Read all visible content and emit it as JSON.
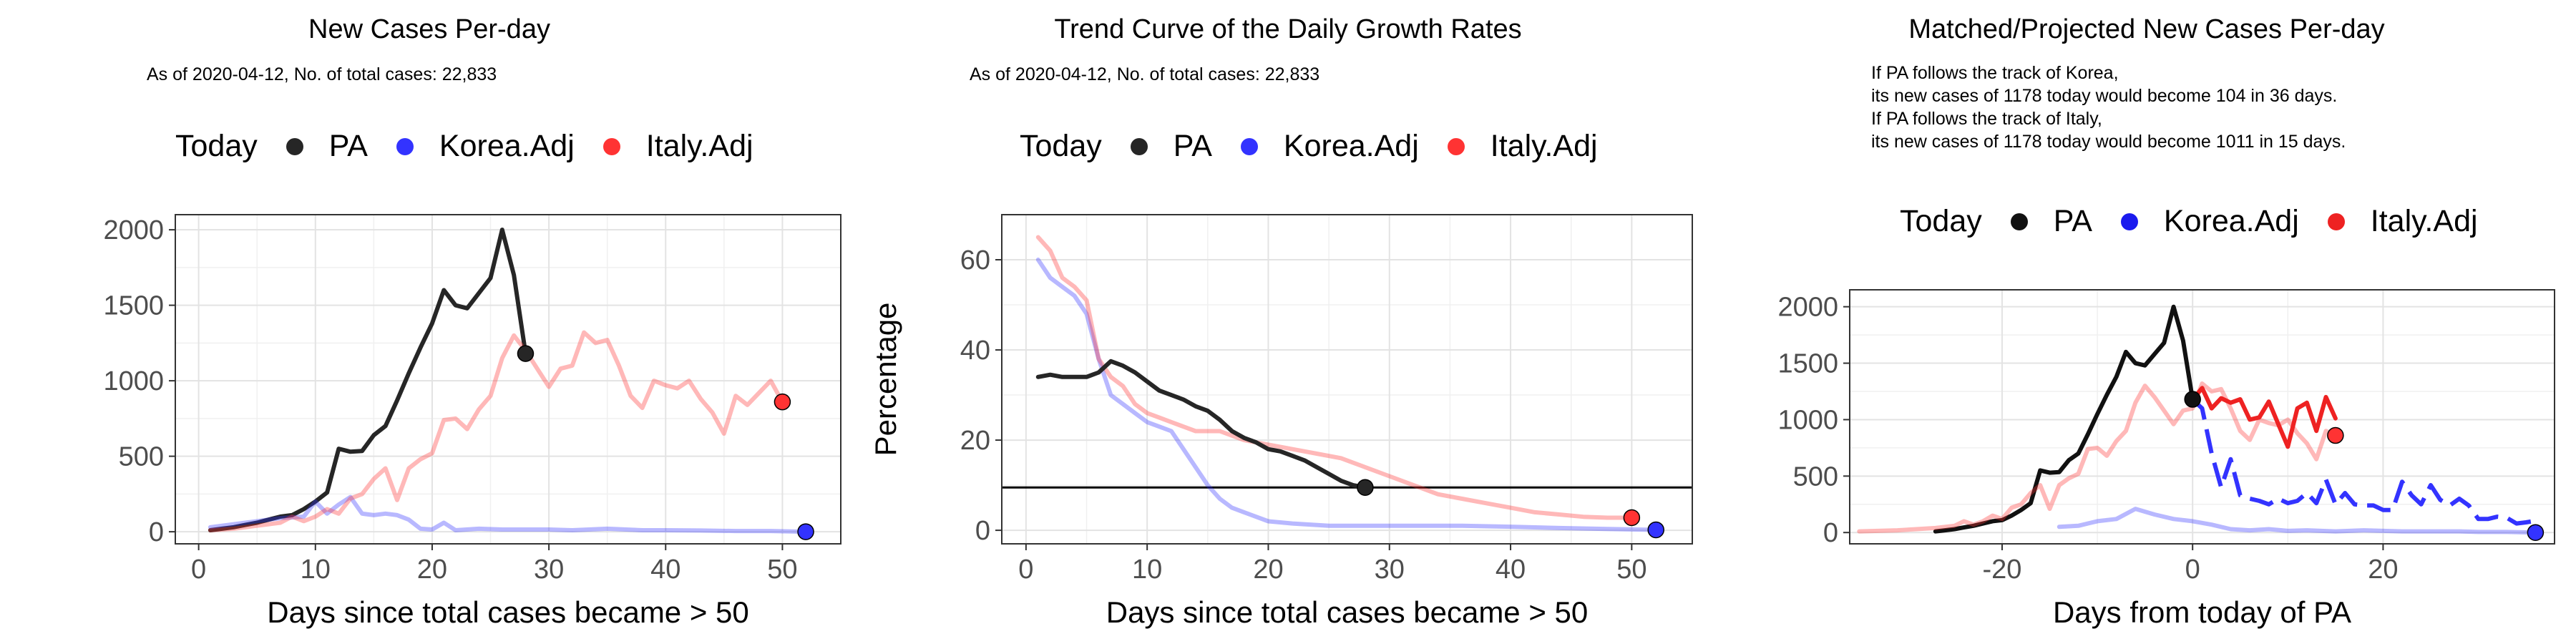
{
  "legend_title": "Today",
  "colors": {
    "PA": "#262626",
    "Korea": "#3333ff",
    "Italy": "#ff3333"
  },
  "chart_data": [
    {
      "type": "line",
      "title": "New Cases Per-day",
      "subtitle": "As of 2020-04-12, No. of total cases: 22,833",
      "xlabel": "Days since total cases became > 50",
      "ylabel": "",
      "xlim": [
        -2,
        55
      ],
      "ylim": [
        -80,
        2100
      ],
      "xticks": [
        0,
        10,
        20,
        30,
        40,
        50
      ],
      "yticks": [
        0,
        500,
        1000,
        1500,
        2000
      ],
      "grid": true,
      "legend_position": "top",
      "legend": [
        "PA",
        "Korea.Adj",
        "Italy.Adj"
      ],
      "series": [
        {
          "name": "PA",
          "color": "#262626",
          "alpha": 1,
          "x": [
            1,
            2,
            3,
            4,
            5,
            6,
            7,
            8,
            9,
            10,
            11,
            12,
            13,
            14,
            15,
            16,
            17,
            18,
            19,
            20,
            21,
            22,
            23,
            24,
            25,
            26,
            27,
            28
          ],
          "y": [
            10,
            20,
            30,
            45,
            60,
            80,
            100,
            110,
            150,
            200,
            260,
            550,
            530,
            535,
            640,
            700,
            870,
            1050,
            1220,
            1380,
            1600,
            1500,
            1480,
            1580,
            1680,
            2000,
            1700,
            1180
          ],
          "end": [
            28,
            1180
          ]
        },
        {
          "name": "Korea.Adj",
          "color": "#3333ff",
          "alpha": 0.35,
          "x": [
            1,
            3,
            5,
            7,
            9,
            10,
            11,
            12,
            13,
            14,
            15,
            16,
            17,
            18,
            19,
            20,
            21,
            22,
            24,
            26,
            28,
            30,
            32,
            35,
            38,
            40,
            43,
            46,
            49,
            52
          ],
          "y": [
            30,
            50,
            70,
            90,
            100,
            200,
            120,
            180,
            230,
            120,
            110,
            120,
            110,
            80,
            20,
            15,
            60,
            10,
            20,
            15,
            15,
            15,
            10,
            20,
            10,
            10,
            8,
            5,
            5,
            0
          ],
          "end": [
            52,
            0
          ]
        },
        {
          "name": "Italy.Adj",
          "color": "#ff3333",
          "alpha": 0.35,
          "x": [
            1,
            2,
            3,
            4,
            5,
            6,
            7,
            8,
            9,
            10,
            11,
            12,
            13,
            14,
            15,
            16,
            17,
            18,
            19,
            20,
            21,
            22,
            23,
            24,
            25,
            26,
            27,
            28,
            29,
            30,
            31,
            32,
            33,
            34,
            35,
            36,
            37,
            38,
            39,
            40,
            41,
            42,
            43,
            44,
            45,
            46,
            47,
            48,
            49,
            50
          ],
          "y": [
            10,
            15,
            20,
            30,
            40,
            50,
            60,
            100,
            70,
            100,
            150,
            120,
            220,
            250,
            350,
            420,
            210,
            420,
            480,
            520,
            740,
            750,
            680,
            810,
            900,
            1150,
            1300,
            1200,
            1080,
            960,
            1080,
            1100,
            1320,
            1250,
            1270,
            1100,
            900,
            820,
            1000,
            970,
            950,
            1000,
            880,
            790,
            650,
            900,
            840,
            920,
            1000,
            860
          ],
          "end": [
            50,
            860
          ]
        }
      ]
    },
    {
      "type": "line",
      "title": "Trend Curve of the Daily Growth Rates",
      "subtitle": "As of 2020-04-12, No. of total cases: 22,833",
      "xlabel": "Days since total cases became > 50",
      "ylabel": "Percentage",
      "xlim": [
        -2,
        55
      ],
      "ylim": [
        -3,
        70
      ],
      "xticks": [
        0,
        10,
        20,
        30,
        40,
        50
      ],
      "yticks": [
        0,
        20,
        40,
        60
      ],
      "hline": 9.5,
      "grid": true,
      "legend_position": "top",
      "legend": [
        "PA",
        "Korea.Adj",
        "Italy.Adj"
      ],
      "series": [
        {
          "name": "Korea.Adj",
          "color": "#3333ff",
          "alpha": 0.35,
          "x": [
            1,
            2,
            3,
            4,
            5,
            6,
            7,
            8,
            9,
            10,
            11,
            12,
            13,
            14,
            15,
            16,
            17,
            18,
            19,
            20,
            22,
            25,
            28,
            32,
            36,
            40,
            44,
            48,
            52
          ],
          "y": [
            60,
            56,
            54,
            52,
            48,
            38,
            30,
            28,
            26,
            24,
            23,
            22,
            18,
            14,
            10,
            7,
            5,
            4,
            3,
            2,
            1.5,
            1,
            1,
            1,
            1,
            0.8,
            0.5,
            0.3,
            0.1
          ],
          "end": [
            52,
            0.1
          ]
        },
        {
          "name": "Italy.Adj",
          "color": "#ff3333",
          "alpha": 0.35,
          "x": [
            1,
            2,
            3,
            4,
            5,
            6,
            7,
            8,
            9,
            10,
            11,
            12,
            13,
            14,
            15,
            16,
            18,
            20,
            22,
            24,
            26,
            28,
            30,
            32,
            34,
            36,
            38,
            40,
            42,
            44,
            46,
            48,
            50
          ],
          "y": [
            65,
            62,
            56,
            54,
            51,
            38,
            34,
            32,
            28,
            26,
            25,
            24,
            23,
            22,
            22,
            22,
            20,
            19,
            18,
            17,
            16,
            14,
            12,
            10,
            8,
            7,
            6,
            5,
            4,
            3.5,
            3,
            2.8,
            2.8
          ],
          "end": [
            50,
            2.8
          ]
        },
        {
          "name": "PA",
          "color": "#262626",
          "alpha": 1,
          "x": [
            1,
            2,
            3,
            4,
            5,
            6,
            7,
            8,
            9,
            10,
            11,
            12,
            13,
            14,
            15,
            16,
            17,
            18,
            19,
            20,
            21,
            22,
            23,
            24,
            25,
            26,
            27,
            28
          ],
          "y": [
            34,
            34.5,
            34,
            34,
            34,
            35,
            37.5,
            36.5,
            35,
            33,
            31,
            30,
            29,
            27.5,
            26.5,
            24.5,
            22,
            20.5,
            19.5,
            18,
            17.5,
            16.5,
            15.5,
            14,
            12.5,
            11,
            10,
            9.5
          ],
          "end": [
            28,
            9.5
          ]
        }
      ]
    },
    {
      "type": "line",
      "title": "Matched/Projected New Cases Per-day",
      "annotations": [
        "If PA follows the track of Korea,",
        "its new cases of 1178 today would become 104 in 36 days.",
        "If PA follows the track of Italy,",
        "its new cases of 1178 today would become 1011 in 15 days."
      ],
      "xlabel": "Days from today of PA",
      "ylabel": "",
      "xlim": [
        -36,
        38
      ],
      "ylim": [
        -100,
        2150
      ],
      "xticks": [
        -20,
        0,
        20
      ],
      "yticks": [
        0,
        500,
        1000,
        1500,
        2000
      ],
      "grid": true,
      "legend_position": "top",
      "legend": [
        "PA",
        "Korea.Adj",
        "Italy.Adj"
      ],
      "series": [
        {
          "name": "PA",
          "color": "#111111",
          "alpha": 1,
          "x": [
            -27,
            -26,
            -25,
            -24,
            -23,
            -22,
            -21,
            -20,
            -19,
            -18,
            -17,
            -16,
            -15,
            -14,
            -13,
            -12,
            -11,
            -10,
            -9,
            -8,
            -7,
            -6,
            -5,
            -4,
            -3,
            -2,
            -1,
            0
          ],
          "y": [
            10,
            20,
            30,
            45,
            60,
            80,
            100,
            110,
            150,
            200,
            260,
            550,
            530,
            535,
            640,
            700,
            870,
            1050,
            1220,
            1380,
            1600,
            1500,
            1480,
            1580,
            1680,
            2000,
            1700,
            1180
          ],
          "end": [
            0,
            1180
          ]
        },
        {
          "name": "Korea.Adj (matched)",
          "color": "#3333ff",
          "alpha": 0.35,
          "x": [
            -14,
            -12,
            -10,
            -8,
            -6,
            -4,
            -2,
            0,
            2,
            4,
            6,
            8,
            10,
            12,
            15,
            18,
            20,
            22,
            25,
            28,
            30,
            33,
            36
          ],
          "y": [
            50,
            60,
            100,
            120,
            210,
            160,
            120,
            100,
            70,
            30,
            20,
            30,
            15,
            20,
            10,
            20,
            15,
            10,
            10,
            10,
            5,
            5,
            0
          ],
          "end": [
            36,
            0
          ]
        },
        {
          "name": "Korea.Adj (projected)",
          "color": "#3333ff",
          "alpha": 1,
          "dash": "34,14",
          "x": [
            0,
            1,
            2,
            3,
            4,
            5,
            6,
            7,
            8,
            9,
            10,
            11,
            12,
            13,
            14,
            15,
            16,
            17,
            18,
            19,
            20,
            21,
            22,
            23,
            24,
            25,
            26,
            27,
            28,
            29,
            30,
            31,
            32,
            33,
            34,
            35,
            36
          ],
          "y": [
            1178,
            1100,
            700,
            400,
            650,
            330,
            300,
            280,
            250,
            300,
            260,
            280,
            350,
            260,
            470,
            250,
            350,
            250,
            240,
            240,
            200,
            200,
            450,
            330,
            250,
            420,
            290,
            240,
            300,
            240,
            120,
            120,
            140,
            130,
            80,
            90,
            104
          ]
        },
        {
          "name": "Italy.Adj (matched)",
          "color": "#ff3333",
          "alpha": 0.35,
          "x": [
            -35,
            -33,
            -31,
            -29,
            -27,
            -26,
            -25,
            -24,
            -23,
            -22,
            -21,
            -20,
            -19,
            -18,
            -17,
            -16,
            -15,
            -14,
            -13,
            -12,
            -11,
            -10,
            -9,
            -8,
            -7,
            -6,
            -5,
            -4,
            -3,
            -2,
            -1,
            0,
            1,
            2,
            3,
            4,
            5,
            6,
            7,
            8,
            9,
            10,
            11,
            12,
            13,
            14,
            15
          ],
          "y": [
            10,
            15,
            20,
            30,
            40,
            50,
            60,
            100,
            70,
            100,
            150,
            120,
            220,
            250,
            350,
            420,
            210,
            420,
            480,
            520,
            740,
            750,
            680,
            810,
            900,
            1150,
            1300,
            1200,
            1080,
            960,
            1080,
            1100,
            1320,
            1250,
            1270,
            1100,
            900,
            820,
            1000,
            970,
            950,
            1000,
            880,
            790,
            650,
            900,
            860
          ],
          "end": [
            15,
            860
          ]
        },
        {
          "name": "Italy.Adj (projected)",
          "color": "#ee2222",
          "alpha": 1,
          "x": [
            0,
            1,
            2,
            3,
            4,
            5,
            6,
            7,
            8,
            9,
            10,
            11,
            12,
            13,
            14,
            15
          ],
          "y": [
            1178,
            1280,
            1100,
            1190,
            1150,
            1180,
            1000,
            1020,
            1160,
            960,
            760,
            1100,
            1150,
            900,
            1200,
            1011
          ]
        }
      ]
    }
  ]
}
